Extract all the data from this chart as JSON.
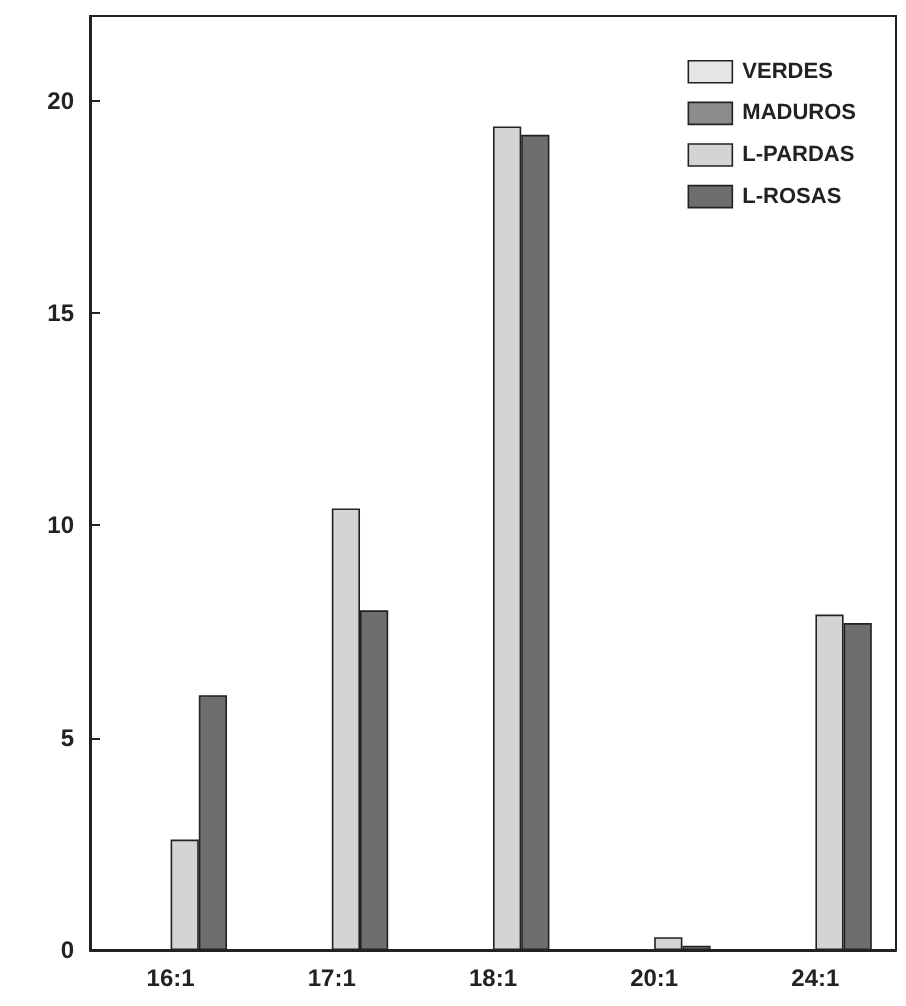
{
  "chart_data": {
    "type": "bar",
    "categories": [
      "16:1",
      "17:1",
      "18:1",
      "20:1",
      "24:1"
    ],
    "series": [
      {
        "name": "VERDES",
        "color": "#e6e6e6",
        "values": [
          null,
          null,
          null,
          null,
          null
        ]
      },
      {
        "name": "MADUROS",
        "color": "#8c8c8c",
        "values": [
          null,
          null,
          null,
          null,
          null
        ]
      },
      {
        "name": "L-PARDAS",
        "color": "#d4d4d4",
        "values": [
          2.6,
          10.4,
          19.4,
          0.3,
          7.9
        ]
      },
      {
        "name": "L-ROSAS",
        "color": "#6e6e6e",
        "values": [
          6.0,
          8.0,
          19.2,
          0.1,
          7.7
        ]
      }
    ],
    "ylim": [
      0,
      22
    ],
    "yticks": [
      0,
      5,
      10,
      15,
      20
    ],
    "grid": false,
    "legend": "top right"
  }
}
